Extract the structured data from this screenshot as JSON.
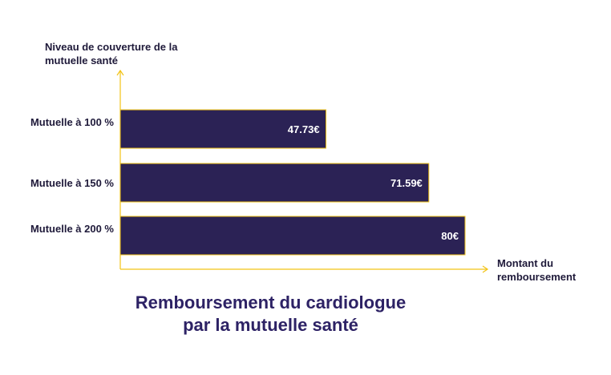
{
  "chart_data": {
    "type": "bar",
    "orientation": "horizontal",
    "title": "Remboursement du cardiologue par la mutuelle santé",
    "ylabel": "Niveau de couverture de la mutuelle santé",
    "xlabel": "Montant du remboursement",
    "categories": [
      "Mutuelle à 100 %",
      "Mutuelle à 150 %",
      "Mutuelle à 200 %"
    ],
    "values": [
      47.73,
      71.59,
      80
    ],
    "value_labels": [
      "47.73€",
      "71.59€",
      "80€"
    ],
    "unit": "€",
    "xlim": [
      0,
      84
    ],
    "grid": false,
    "legend": "none",
    "colors": {
      "bar_fill": "#2b2255",
      "bar_stroke": "#f2c316",
      "axis": "#f2c316",
      "label_text": "#ffffff",
      "title_text": "#2d2265"
    }
  }
}
